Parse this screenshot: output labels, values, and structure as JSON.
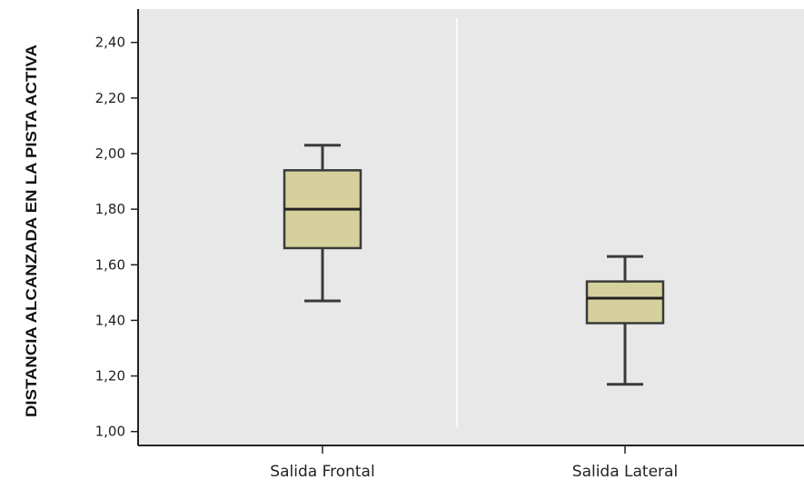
{
  "chart_data": {
    "type": "boxplot",
    "ylabel": "DISTANCIA ALCANZADA EN LA PISTA ACTIVA",
    "xlabel": "",
    "categories": [
      "Salida Frontal",
      "Salida Lateral"
    ],
    "y_ticks": [
      "1,00",
      "1,20",
      "1,40",
      "1,60",
      "1,80",
      "2,00",
      "2,20",
      "2,40"
    ],
    "ylim": [
      0.95,
      2.52
    ],
    "grid": false,
    "series": [
      {
        "category": "Salida Frontal",
        "min": 1.47,
        "q1": 1.66,
        "median": 1.8,
        "q3": 1.94,
        "max": 2.03
      },
      {
        "category": "Salida Lateral",
        "min": 1.17,
        "q1": 1.39,
        "median": 1.48,
        "q3": 1.54,
        "max": 1.63
      }
    ],
    "colors": {
      "plot_background": "#e8e8e8",
      "box_fill": "#d6d09c",
      "box_stroke": "#3a3a3a",
      "axis": "#222222"
    }
  }
}
